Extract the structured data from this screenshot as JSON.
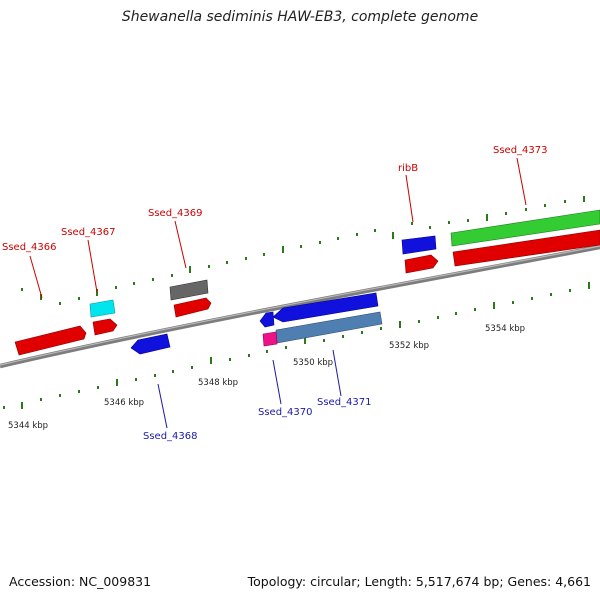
{
  "title": "Shewanella sediminis HAW-EB3, complete genome",
  "accession": "Accession: NC_009831",
  "topology": "Topology: circular; Length: 5,517,674 bp; Genes: 4,661",
  "colors": {
    "forward_label": "#cc0000",
    "reverse_label": "#1a1aaa",
    "backbone": "#8a8a8a",
    "tick": "#2a7a1a",
    "red_gene": "#e00000",
    "blue_gene": "#1111dd",
    "cyan_gene": "#00e5ee",
    "gray_gene": "#666666",
    "green_gene": "#33cc33",
    "steel_gene": "#4f7fb0",
    "pink_gene": "#ee1188"
  },
  "gene_labels": [
    {
      "id": "Ssed_4366",
      "strand": "forward"
    },
    {
      "id": "Ssed_4367",
      "strand": "forward"
    },
    {
      "id": "Ssed_4369",
      "strand": "forward"
    },
    {
      "id": "ribB",
      "strand": "forward"
    },
    {
      "id": "Ssed_4373",
      "strand": "forward"
    },
    {
      "id": "Ssed_4368",
      "strand": "reverse"
    },
    {
      "id": "Ssed_4370",
      "strand": "reverse"
    },
    {
      "id": "Ssed_4371",
      "strand": "reverse"
    }
  ],
  "tick_labels": [
    "5344 kbp",
    "5346 kbp",
    "5348 kbp",
    "5350 kbp",
    "5352 kbp",
    "5354 kbp"
  ]
}
